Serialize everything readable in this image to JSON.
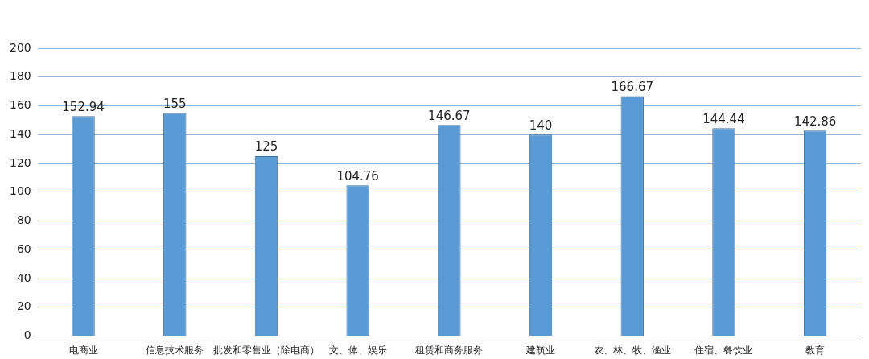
{
  "chart_data": {
    "type": "bar",
    "categories": [
      "电商业",
      "信息技术服务",
      "批发和零售业（除电商）",
      "文、体、娱乐",
      "租赁和商务服务",
      "建筑业",
      "农、林、牧、渔业",
      "住宿、餐饮业",
      "教育"
    ],
    "values": [
      152.94,
      155,
      125,
      104.76,
      146.67,
      140,
      166.67,
      144.44,
      142.86
    ],
    "color": "#5b9bd5",
    "ylim": [
      0,
      200
    ],
    "yticks": [
      0,
      20,
      40,
      60,
      80,
      100,
      120,
      140,
      160,
      180,
      200
    ],
    "grid": "y",
    "data_labels": true,
    "legend": false
  }
}
